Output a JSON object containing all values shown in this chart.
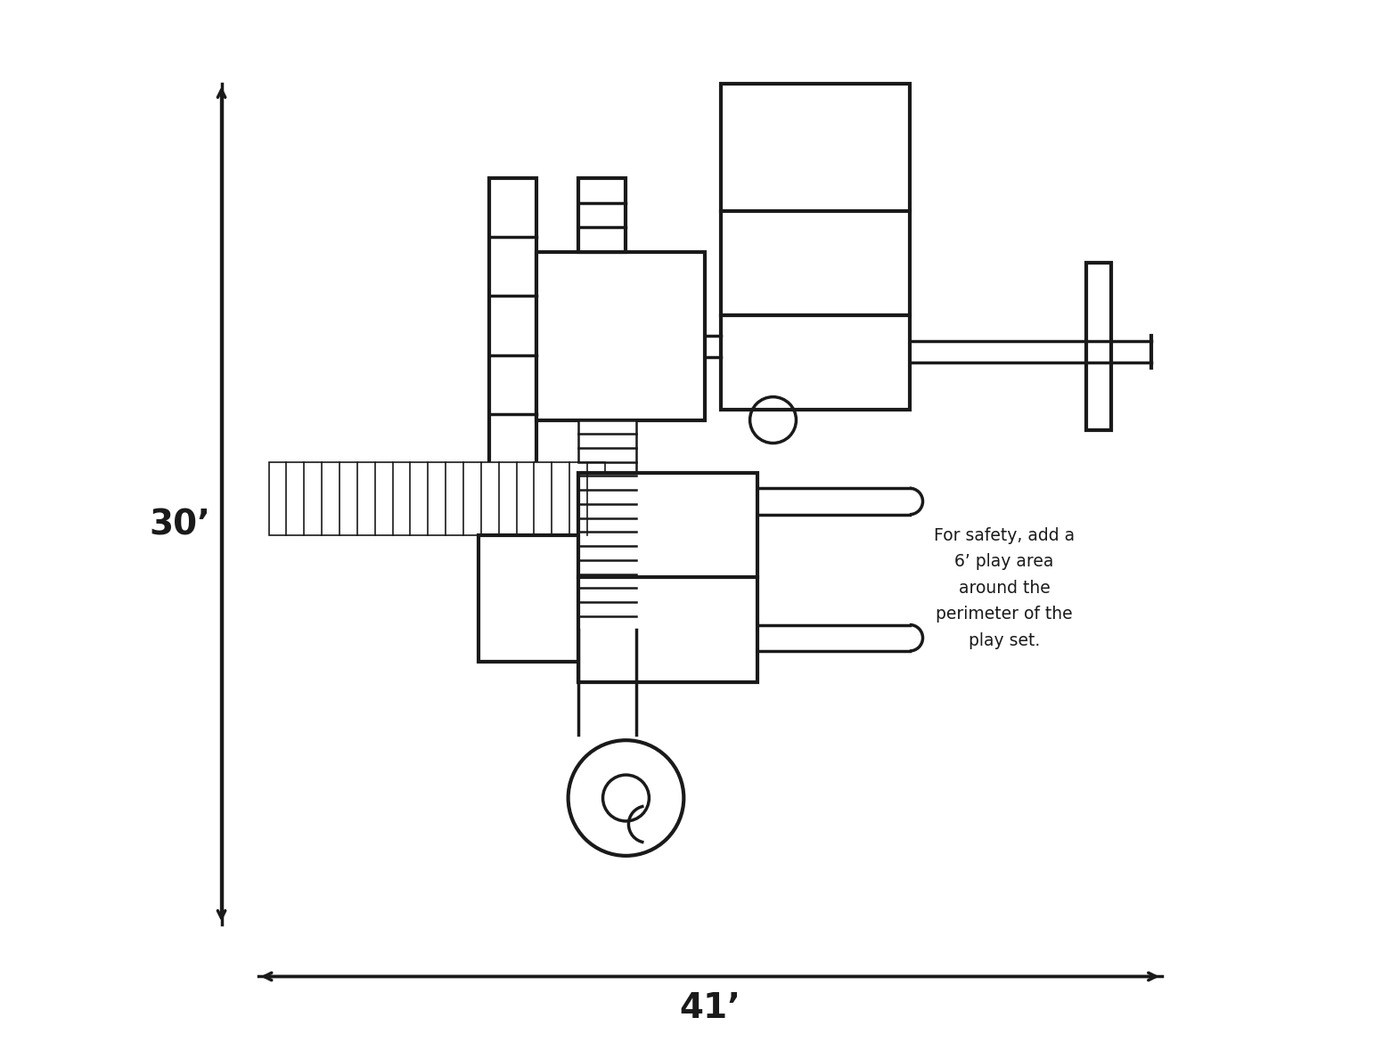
{
  "bg_color": "#ffffff",
  "line_color": "#1a1a1a",
  "lw": 2.5,
  "lw_thick": 3.0,
  "annotation_text": "For safety, add a\n6’ play area\naround the\nperimeter of the\nplay set.",
  "dim_label_30": "30’",
  "dim_label_41": "41’",
  "fig_width": 15.7,
  "fig_height": 11.79
}
